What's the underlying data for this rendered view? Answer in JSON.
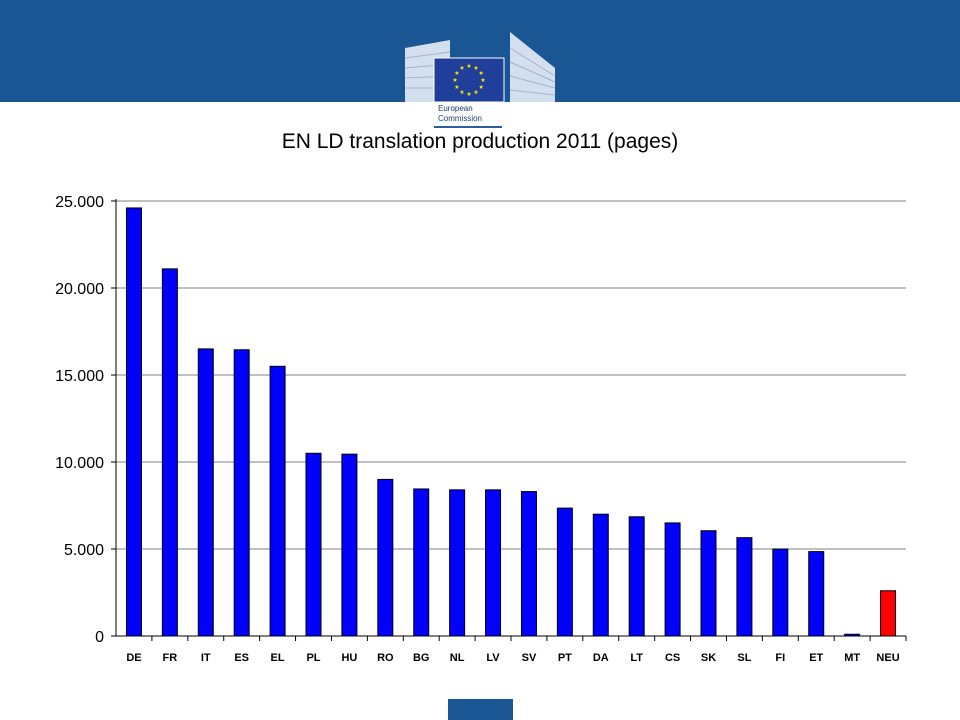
{
  "header": {
    "logo_line1": "European",
    "logo_line2": "Commission"
  },
  "chart_data": {
    "type": "bar",
    "title": "EN LD translation production 2011 (pages)",
    "categories": [
      "DE",
      "FR",
      "IT",
      "ES",
      "EL",
      "PL",
      "HU",
      "RO",
      "BG",
      "NL",
      "LV",
      "SV",
      "PT",
      "DA",
      "LT",
      "CS",
      "SK",
      "SL",
      "FI",
      "ET",
      "MT",
      "NEU"
    ],
    "values": [
      24600,
      21100,
      16500,
      16450,
      15500,
      10500,
      10450,
      9000,
      8450,
      8400,
      8400,
      8300,
      7350,
      7000,
      6850,
      6500,
      6050,
      5650,
      5000,
      4850,
      100,
      2600
    ],
    "ylim": [
      0,
      25000
    ],
    "yticks": [
      0,
      5000,
      10000,
      15000,
      20000,
      25000
    ],
    "ytick_labels": [
      "0",
      "5.000",
      "10.000",
      "15.000",
      "20.000",
      "25.000"
    ],
    "grid": true,
    "colors": {
      "bar": "#0000ff",
      "highlight_bar": "#ff0000",
      "highlight_category": "NEU",
      "grid": "#808080"
    }
  }
}
